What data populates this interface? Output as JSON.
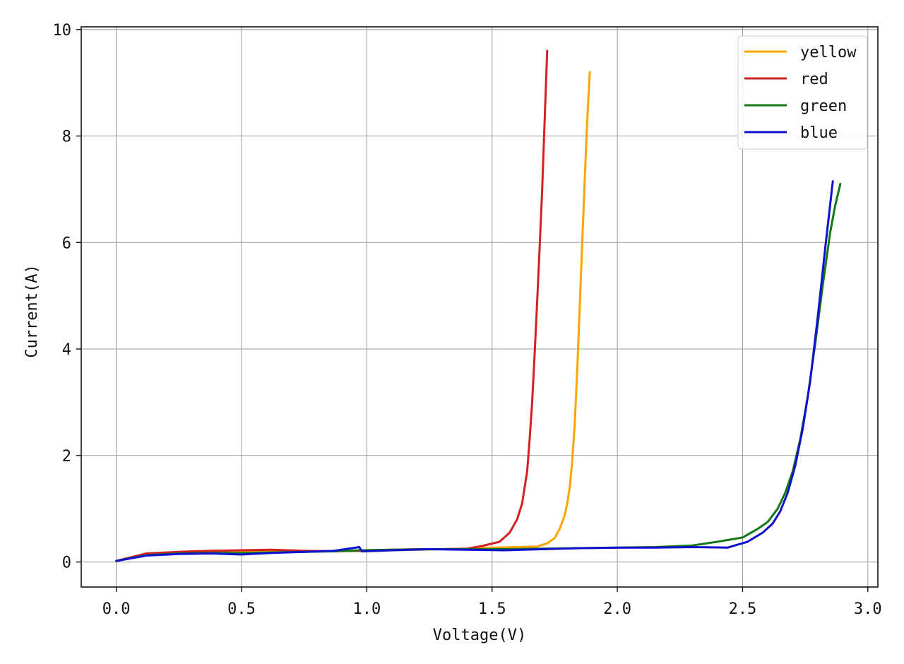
{
  "chart_data": {
    "type": "line",
    "xlabel": "Voltage(V)",
    "ylabel": "Current(A)",
    "xlim": [
      -0.14,
      3.04
    ],
    "ylim": [
      -0.47,
      10.05
    ],
    "xticks": [
      0.0,
      0.5,
      1.0,
      1.5,
      2.0,
      2.5,
      3.0
    ],
    "xtick_labels": [
      "0.0",
      "0.5",
      "1.0",
      "1.5",
      "2.0",
      "2.5",
      "3.0"
    ],
    "yticks": [
      0,
      2,
      4,
      6,
      8,
      10
    ],
    "ytick_labels": [
      "0",
      "2",
      "4",
      "6",
      "8",
      "10"
    ],
    "grid": true,
    "legend_position": "top-right",
    "series": [
      {
        "name": "yellow",
        "color": "#ffa500",
        "x": [
          0.0,
          0.1,
          0.2,
          0.3,
          0.4,
          0.5,
          0.6,
          0.7,
          0.8,
          0.9,
          1.0,
          1.1,
          1.2,
          1.3,
          1.4,
          1.5,
          1.6,
          1.68,
          1.72,
          1.75,
          1.77,
          1.79,
          1.8,
          1.81,
          1.82,
          1.83,
          1.84,
          1.85,
          1.86,
          1.87,
          1.88,
          1.89
        ],
        "y": [
          0.02,
          0.13,
          0.17,
          0.2,
          0.21,
          0.21,
          0.2,
          0.19,
          0.2,
          0.21,
          0.2,
          0.22,
          0.23,
          0.24,
          0.25,
          0.27,
          0.28,
          0.29,
          0.35,
          0.45,
          0.62,
          0.88,
          1.1,
          1.4,
          1.9,
          2.6,
          3.6,
          4.8,
          6.0,
          7.2,
          8.3,
          9.2
        ]
      },
      {
        "name": "red",
        "color": "#d62020",
        "x": [
          0.0,
          0.12,
          0.25,
          0.38,
          0.5,
          0.62,
          0.75,
          0.87,
          1.0,
          1.1,
          1.2,
          1.3,
          1.4,
          1.46,
          1.53,
          1.57,
          1.6,
          1.62,
          1.64,
          1.65,
          1.66,
          1.67,
          1.68,
          1.69,
          1.7,
          1.71,
          1.72
        ],
        "y": [
          0.02,
          0.16,
          0.19,
          0.21,
          0.22,
          0.23,
          0.21,
          0.2,
          0.22,
          0.23,
          0.24,
          0.24,
          0.25,
          0.3,
          0.38,
          0.55,
          0.8,
          1.1,
          1.7,
          2.3,
          3.0,
          3.9,
          4.9,
          5.9,
          7.0,
          8.3,
          9.6
        ]
      },
      {
        "name": "green",
        "color": "#147814",
        "x": [
          0.0,
          0.12,
          0.25,
          0.38,
          0.5,
          0.62,
          0.75,
          0.87,
          0.97,
          0.98,
          1.1,
          1.25,
          1.4,
          1.55,
          1.7,
          1.85,
          2.0,
          2.15,
          2.3,
          2.4,
          2.5,
          2.56,
          2.6,
          2.64,
          2.67,
          2.7,
          2.73,
          2.76,
          2.79,
          2.82,
          2.85,
          2.87,
          2.89
        ],
        "y": [
          0.02,
          0.13,
          0.16,
          0.17,
          0.17,
          0.18,
          0.19,
          0.2,
          0.22,
          0.22,
          0.23,
          0.24,
          0.24,
          0.24,
          0.25,
          0.26,
          0.27,
          0.28,
          0.31,
          0.38,
          0.46,
          0.62,
          0.75,
          1.0,
          1.3,
          1.7,
          2.3,
          3.1,
          4.1,
          5.2,
          6.2,
          6.7,
          7.1
        ]
      },
      {
        "name": "blue",
        "color": "#1010d0",
        "x": [
          0.0,
          0.12,
          0.25,
          0.38,
          0.5,
          0.62,
          0.75,
          0.87,
          0.97,
          0.98,
          1.1,
          1.25,
          1.4,
          1.55,
          1.7,
          1.85,
          2.0,
          2.15,
          2.3,
          2.44,
          2.52,
          2.58,
          2.62,
          2.65,
          2.68,
          2.71,
          2.74,
          2.77,
          2.8,
          2.83,
          2.86
        ],
        "y": [
          0.02,
          0.12,
          0.15,
          0.16,
          0.14,
          0.17,
          0.19,
          0.21,
          0.28,
          0.2,
          0.22,
          0.24,
          0.23,
          0.22,
          0.24,
          0.26,
          0.27,
          0.27,
          0.28,
          0.27,
          0.38,
          0.55,
          0.72,
          0.95,
          1.3,
          1.8,
          2.5,
          3.4,
          4.6,
          5.9,
          7.15
        ]
      }
    ]
  }
}
